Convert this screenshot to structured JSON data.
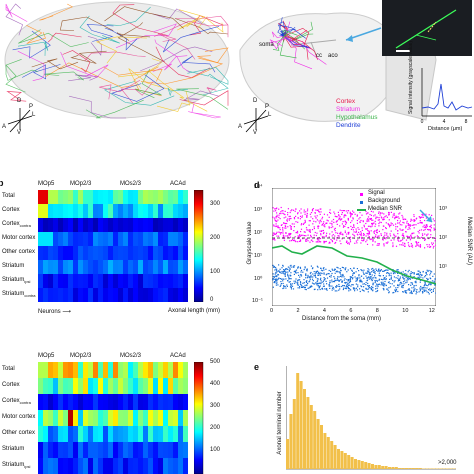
{
  "panel_a": {
    "orientation": {
      "d": "D",
      "r": "R",
      "l": "L",
      "a": "A",
      "p": "P",
      "v": "V"
    }
  },
  "panel_b_top": {
    "orientation": {
      "d": "D",
      "r": "R",
      "l": "L",
      "a": "A",
      "p": "P",
      "v": "V"
    },
    "labels": {
      "soma": "soma",
      "cc": "cc",
      "aco": "aco"
    },
    "legend": [
      {
        "text": "Cortex",
        "color": "#e6194b"
      },
      {
        "text": "Striatum",
        "color": "#f032e6"
      },
      {
        "text": "Hypothalamus",
        "color": "#3cb44b"
      },
      {
        "text": "Dendrite",
        "color": "#1f3fd6"
      }
    ],
    "intensity_plot": {
      "ylabel": "Signal intensity (grayscale value)",
      "xlabel": "Distance (μm)",
      "xticks": [
        "0",
        "4",
        "8"
      ]
    }
  },
  "panel_b_heatmap": {
    "letter": "b",
    "regions": [
      "MOp5",
      "MOp2/3",
      "MOs2/3",
      "ACAd"
    ],
    "rows": [
      {
        "base": "Total",
        "sub": ""
      },
      {
        "base": "Cortex",
        "sub": ""
      },
      {
        "base": "Cortex",
        "sub": "contra"
      },
      {
        "base": "Motor cortex",
        "sub": ""
      },
      {
        "base": "Other cortex",
        "sub": ""
      },
      {
        "base": "Striatum",
        "sub": ""
      },
      {
        "base": "Striatum",
        "sub": "ipsi"
      },
      {
        "base": "Striatum",
        "sub": "contra"
      }
    ],
    "xlabel": "Neurons",
    "cbar_label": "Axonal length (mm)",
    "cbar_ticks": [
      "300",
      "200",
      "100",
      "0"
    ]
  },
  "panel_c_heatmap": {
    "regions": [
      "MOp5",
      "MOp2/3",
      "MOs2/3",
      "ACAd"
    ],
    "rows": [
      {
        "base": "Total",
        "sub": ""
      },
      {
        "base": "Cortex",
        "sub": ""
      },
      {
        "base": "Cortex",
        "sub": "contra"
      },
      {
        "base": "Motor cortex",
        "sub": ""
      },
      {
        "base": "Other cortex",
        "sub": ""
      },
      {
        "base": "Striatum",
        "sub": ""
      },
      {
        "base": "Striatum",
        "sub": "ipsi"
      }
    ],
    "cbar_ticks": [
      "500",
      "400",
      "300",
      "200",
      "100"
    ]
  },
  "panel_d": {
    "letter": "d",
    "ylabel": "Grayscale value",
    "y2label": "Median SNR (AU)",
    "xlabel": "Distance from the soma (mm)",
    "xticks": [
      "0",
      "2",
      "4",
      "6",
      "8",
      "10",
      "12"
    ],
    "yticks": [
      "10⁴",
      "10³",
      "10²",
      "10¹",
      "10⁰",
      "10⁻¹"
    ],
    "y2ticks": [
      "10³",
      "10²",
      "10¹"
    ],
    "legend": [
      {
        "text": "Signal",
        "color": "#ff00ff"
      },
      {
        "text": "Background",
        "color": "#1a6fd6"
      },
      {
        "text": "Median SNR",
        "color": "#22b04b"
      }
    ]
  },
  "panel_e": {
    "letter": "e",
    "ylabel": "Axonal terminal number",
    "xtick": ">2,000",
    "bar_color": "#f2c04a"
  }
}
